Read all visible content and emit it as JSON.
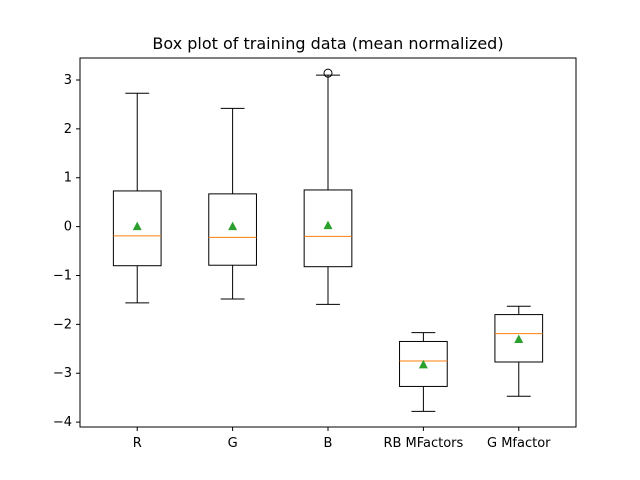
{
  "chart_data": {
    "type": "box",
    "title": "Box plot of training data (mean normalized)",
    "xlabel": "",
    "ylabel": "",
    "ylim": [
      -4.1,
      3.45
    ],
    "yticks": [
      3,
      2,
      1,
      0,
      -1,
      -2,
      -3,
      -4
    ],
    "grid": false,
    "categories": [
      "R",
      "G",
      "B",
      "RB MFactors",
      "G Mfactor"
    ],
    "boxes": [
      {
        "label": "R",
        "whisker_low": -1.56,
        "q1": -0.8,
        "median": -0.19,
        "q3": 0.73,
        "whisker_high": 2.73,
        "mean": 0.0,
        "outliers": []
      },
      {
        "label": "G",
        "whisker_low": -1.48,
        "q1": -0.79,
        "median": -0.22,
        "q3": 0.67,
        "whisker_high": 2.42,
        "mean": 0.0,
        "outliers": []
      },
      {
        "label": "B",
        "whisker_low": -1.59,
        "q1": -0.82,
        "median": -0.2,
        "q3": 0.75,
        "whisker_high": 3.1,
        "mean": 0.02,
        "outliers": [
          3.14
        ]
      },
      {
        "label": "RB MFactors",
        "whisker_low": -3.78,
        "q1": -3.27,
        "median": -2.75,
        "q3": -2.35,
        "whisker_high": -2.17,
        "mean": -2.83,
        "outliers": []
      },
      {
        "label": "G Mfactor",
        "whisker_low": -3.47,
        "q1": -2.77,
        "median": -2.19,
        "q3": -1.8,
        "whisker_high": -1.63,
        "mean": -2.31,
        "outliers": []
      }
    ],
    "colors": {
      "box": "#000000",
      "median": "#ff7f0e",
      "mean": "#2ca02c"
    }
  }
}
